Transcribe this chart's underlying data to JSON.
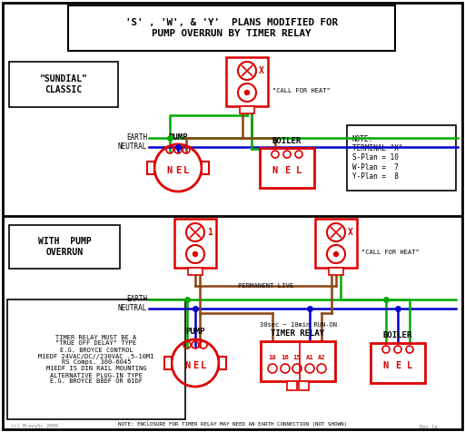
{
  "title": "'S' , 'W', & 'Y'  PLANS MODIFIED FOR\nPUMP OVERRUN BY TIMER RELAY",
  "bg_color": "#ffffff",
  "border_color": "#000000",
  "red": "#dd0000",
  "green": "#00aa00",
  "blue": "#0000cc",
  "brown": "#8B4513",
  "gray": "#888888",
  "sundial_label": "\"SUNDIAL\"\nCLASSIC",
  "pump_overrun_label": "WITH  PUMP\nOVERRUN",
  "note_text": "NOTE:\nTERMINAL \"X\"\nS-Plan = 10\nW-Plan =  7\nY-Plan =  8",
  "timer_note": "TIMER RELAY MUST BE A\n\"TRUE OFF DELAY\" TYPE\nE.G. BROYCE CONTROL\nM1EDF 24VAC/DC//230VAC .5-10MI\nRS Comps. 300-6045\nM1EDF IS DIN RAIL MOUNTING\nALTERNATIVE PLUG-IN TYPE\nE.G. BROYCE B8DF OR B1DF",
  "bottom_note": "NOTE: ENCLOSURE FOR TIMER RELAY MAY NEED AN EARTH CONNECTION (NOT SHOWN)",
  "watermark": "(c) BrevySc 2009",
  "revision": "Rev 1a",
  "call_for_heat": "\"CALL FOR HEAT\"",
  "permanent_live": "PERMANENT LIVE",
  "earth_label": "EARTH",
  "neutral_label": "NEUTRAL",
  "pump_label": "PUMP",
  "boiler_label": "BOILER",
  "timer_relay_label": "TIMER RELAY",
  "timer_relay_sub": "30sec ~ 10min RUN-ON"
}
